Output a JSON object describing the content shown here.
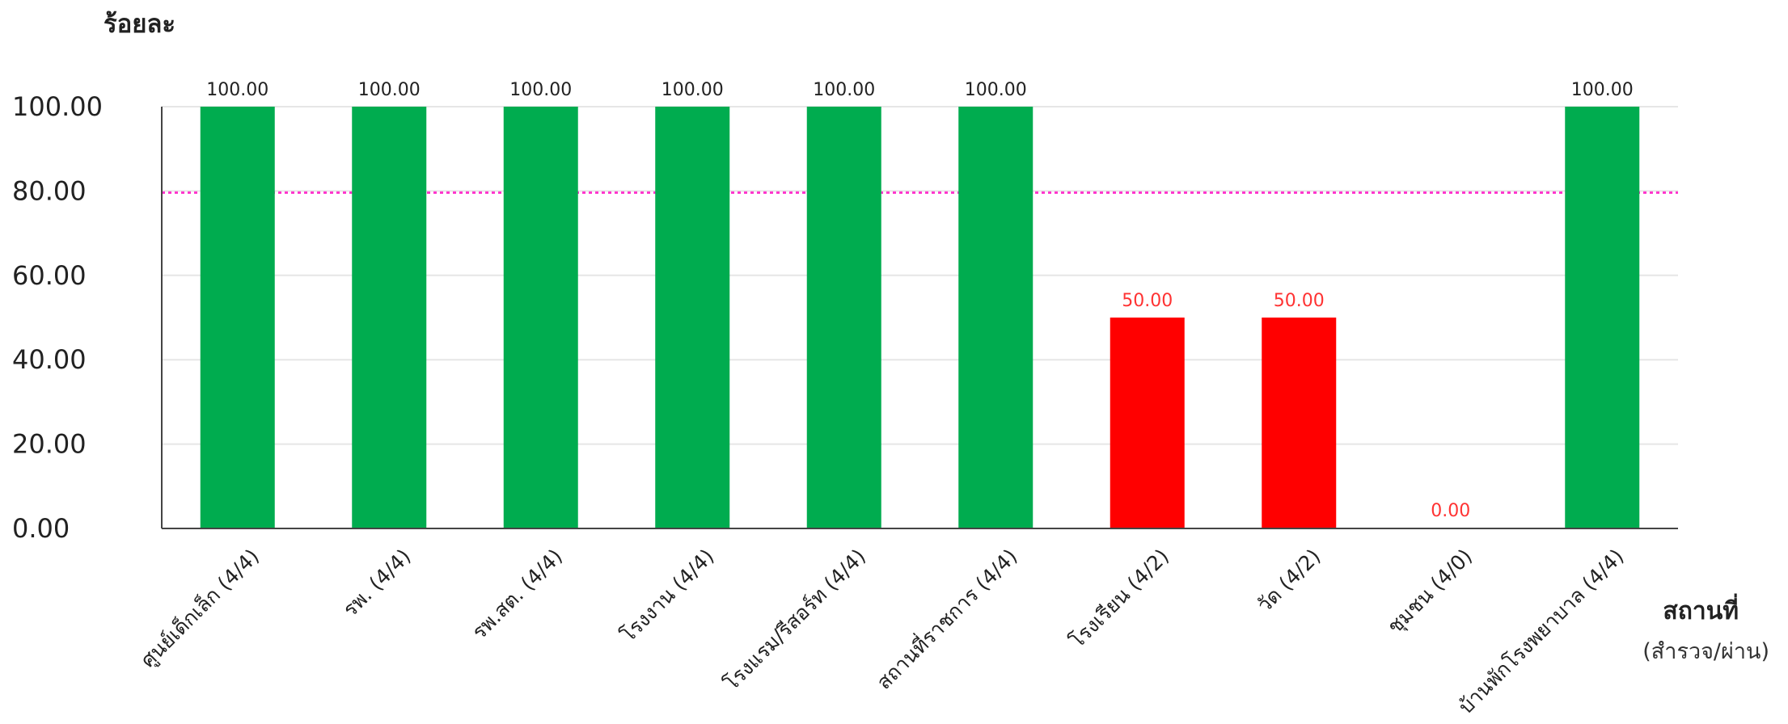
{
  "chart_data": {
    "type": "bar",
    "ylabel": "ร้อยละ",
    "xlabel": "สถานที่",
    "xlabel_sub": "(สำรวจ/ผ่าน)",
    "ylim": [
      0,
      100
    ],
    "yticks": [
      "0.00",
      "20.00",
      "40.00",
      "60.00",
      "80.00",
      "100.00"
    ],
    "ytick_values": [
      0,
      20,
      40,
      60,
      80,
      100
    ],
    "target_line": 80,
    "grid": true,
    "categories": [
      "ศูนย์เด็กเล็ก (4/4)",
      "รพ. (4/4)",
      "รพ.สต. (4/4)",
      "โรงงาน (4/4)",
      "โรงแรม/รีสอร์ท (4/4)",
      "สถานที่ราชการ (4/4)",
      "โรงเรียน (4/2)",
      "วัด (4/2)",
      "ชุมชน (4/0)",
      "บ้านพักโรงพยาบาล (4/4)"
    ],
    "values": [
      100,
      100,
      100,
      100,
      100,
      100,
      50,
      50,
      0,
      100
    ],
    "value_labels": [
      "100.00",
      "100.00",
      "100.00",
      "100.00",
      "100.00",
      "100.00",
      "50.00",
      "50.00",
      "0.00",
      "100.00"
    ],
    "colors": {
      "pass": "#00ac4f",
      "fail": "#ff0000",
      "pass_label": "#222222",
      "fail_label": "#ff3333",
      "target": "#ff33cc",
      "grid": "#e6e6e6",
      "axis": "#444444"
    }
  }
}
